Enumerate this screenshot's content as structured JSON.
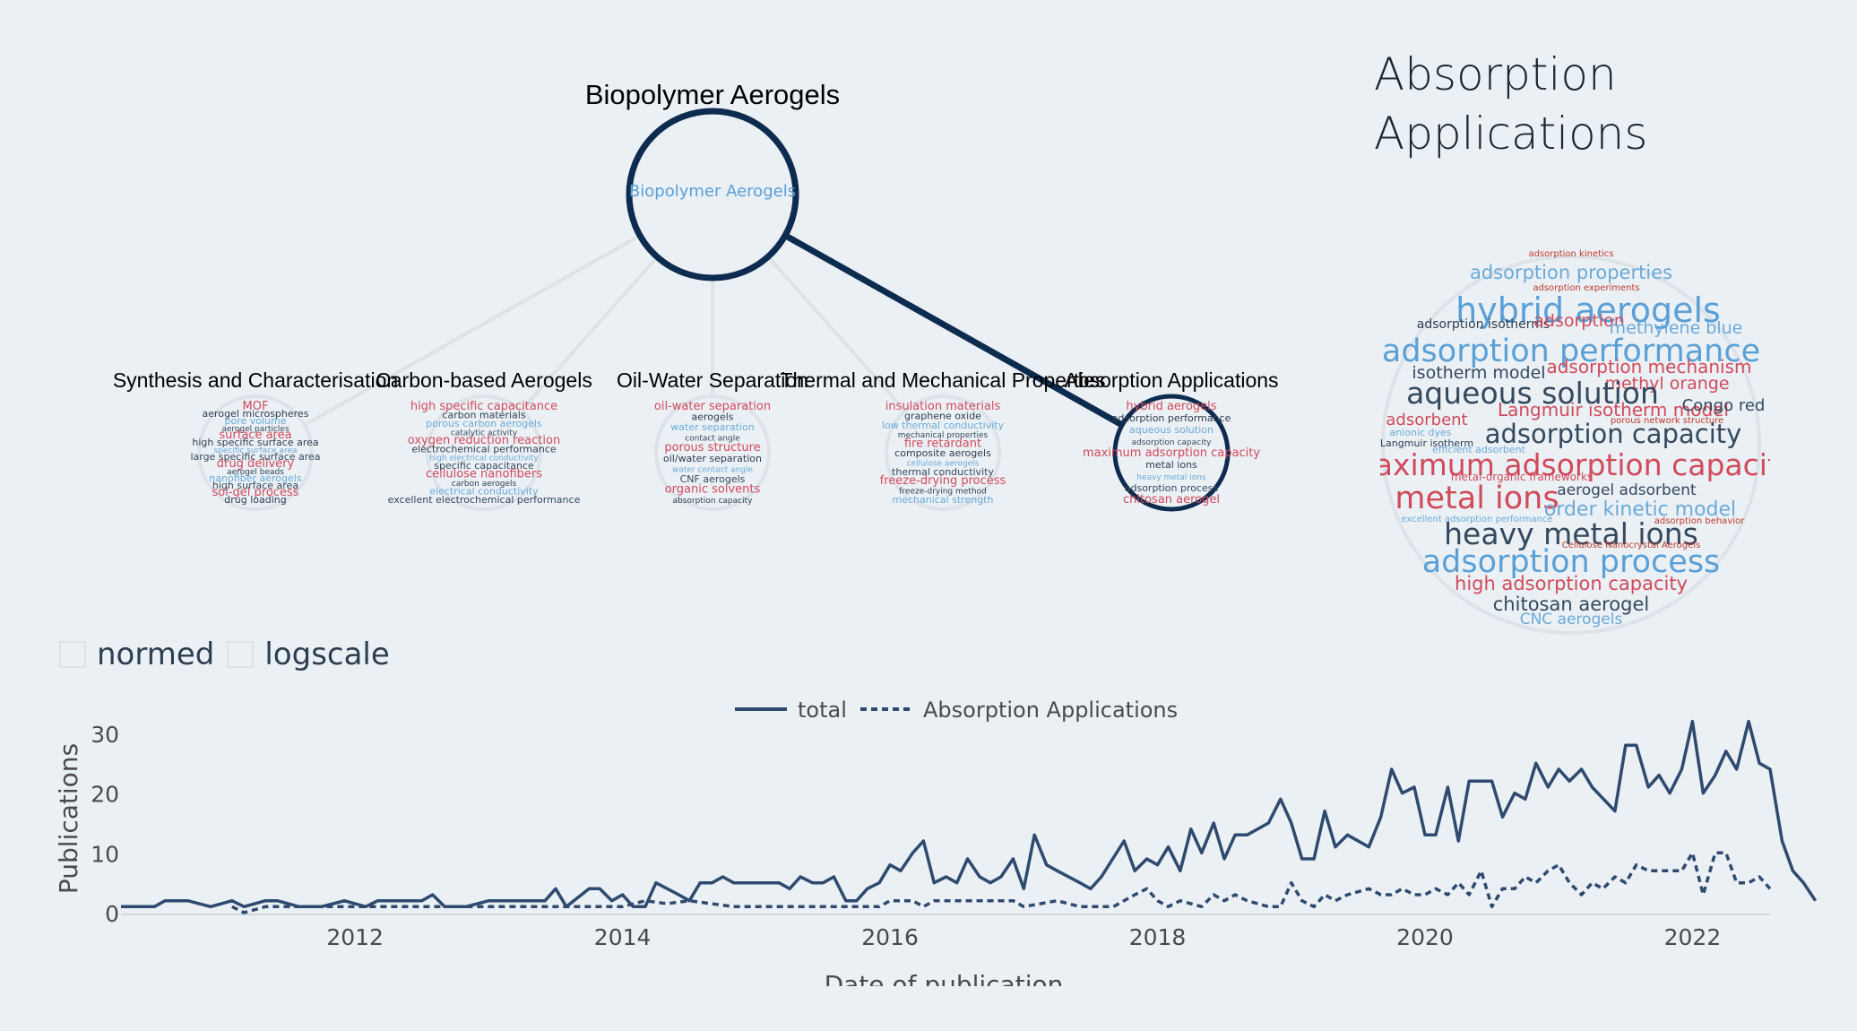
{
  "root": {
    "title": "Biopolymer Aerogels",
    "inner_label": "Biopolymer Aerogels"
  },
  "children": [
    {
      "label": "Synthesis and Characterisation",
      "selected": false,
      "words": [
        "MOF",
        "aerogel microspheres",
        "pore volume",
        "aerogel particles",
        "surface area",
        "high specific surface area",
        "specific surface area",
        "large specific surface area",
        "drug delivery",
        "aerogel beads",
        "nanofiber aerogels",
        "high surface area",
        "sol-gel process",
        "drug loading"
      ]
    },
    {
      "label": "Carbon-based Aerogels",
      "selected": false,
      "words": [
        "high specific capacitance",
        "carbon materials",
        "porous carbon aerogels",
        "catalytic activity",
        "oxygen reduction reaction",
        "electrochemical performance",
        "high electrical conductivity",
        "specific capacitance",
        "cellulose nanofibers",
        "carbon aerogels",
        "electrical conductivity",
        "excellent electrochemical performance"
      ]
    },
    {
      "label": "Oil-Water Separation",
      "selected": false,
      "words": [
        "oil-water separation",
        "aerogels",
        "water separation",
        "contact angle",
        "porous structure",
        "oil/water separation",
        "water contact angle",
        "CNF aerogels",
        "organic solvents",
        "absorption capacity"
      ]
    },
    {
      "label": "Thermal and Mechanical Properties",
      "selected": false,
      "words": [
        "insulation materials",
        "graphene oxide",
        "low thermal conductivity",
        "mechanical properties",
        "fire retardant",
        "composite aerogels",
        "cellulose aerogels",
        "thermal conductivity",
        "freeze-drying process",
        "freeze-drying method",
        "mechanical strength"
      ]
    },
    {
      "label": "Absorption Applications",
      "selected": true,
      "words": [
        "hybrid aerogels",
        "adsorption performance",
        "aqueous solution",
        "adsorption capacity",
        "maximum adsorption capacity",
        "metal ions",
        "heavy metal ions",
        "adsorption process",
        "chitosan aerogel"
      ]
    }
  ],
  "detail": {
    "title": "Absorption Applications",
    "words": [
      {
        "text": "adsorption kinetics",
        "size": 10,
        "color": "#c0392b"
      },
      {
        "text": "adsorption properties",
        "size": 21,
        "color": "#6aaad8"
      },
      {
        "text": "adsorption experiments",
        "size": 10,
        "color": "#c0392b"
      },
      {
        "text": "hybrid aerogels",
        "size": 38,
        "color": "#5aa0d6"
      },
      {
        "text": "adsorption isotherms",
        "size": 14,
        "color": "#2c3e50"
      },
      {
        "text": "adsorption",
        "size": 19,
        "color": "#d14a5a"
      },
      {
        "text": "methylene blue",
        "size": 19,
        "color": "#6aaad8"
      },
      {
        "text": "adsorption performance",
        "size": 35,
        "color": "#5aa0d6"
      },
      {
        "text": "isotherm model",
        "size": 19,
        "color": "#34495e"
      },
      {
        "text": "adsorption mechanism",
        "size": 20,
        "color": "#d14a5a"
      },
      {
        "text": "methyl orange",
        "size": 19,
        "color": "#d14a5a"
      },
      {
        "text": "aqueous solution",
        "size": 33,
        "color": "#34495e"
      },
      {
        "text": "Langmuir isotherm model",
        "size": 20,
        "color": "#d14a5a"
      },
      {
        "text": "Congo red",
        "size": 18,
        "color": "#34495e"
      },
      {
        "text": "adsorbent",
        "size": 18,
        "color": "#d14a5a"
      },
      {
        "text": "porous network structure",
        "size": 10,
        "color": "#c0392b"
      },
      {
        "text": "adsorption capacity",
        "size": 29,
        "color": "#34495e"
      },
      {
        "text": "anionic dyes",
        "size": 11,
        "color": "#6aaad8"
      },
      {
        "text": "Langmuir isotherm",
        "size": 11,
        "color": "#2c3e50"
      },
      {
        "text": "efficient adsorbent",
        "size": 11,
        "color": "#6aaad8"
      },
      {
        "text": "maximum adsorption capacity",
        "size": 33,
        "color": "#d14a5a"
      },
      {
        "text": "metal-organic frameworks",
        "size": 12,
        "color": "#d14a5a"
      },
      {
        "text": "metal ions",
        "size": 35,
        "color": "#d14a5a"
      },
      {
        "text": "aerogel adsorbent",
        "size": 17,
        "color": "#34495e"
      },
      {
        "text": "order kinetic model",
        "size": 22,
        "color": "#6aaad8"
      },
      {
        "text": "excellent adsorption performance",
        "size": 10,
        "color": "#6aaad8"
      },
      {
        "text": "adsorption behavior",
        "size": 10,
        "color": "#c0392b"
      },
      {
        "text": "heavy metal ions",
        "size": 33,
        "color": "#34495e"
      },
      {
        "text": "Cellulose Nanocrystal Aerogels",
        "size": 10,
        "color": "#c0392b"
      },
      {
        "text": "adsorption process",
        "size": 35,
        "color": "#5aa0d6"
      },
      {
        "text": "high adsorption capacity",
        "size": 21,
        "color": "#d14a5a"
      },
      {
        "text": "chitosan aerogel",
        "size": 21,
        "color": "#34495e"
      },
      {
        "text": "CNC aerogels",
        "size": 17,
        "color": "#6aaad8"
      }
    ]
  },
  "controls": {
    "normed_label": "normed",
    "logscale_label": "logscale"
  },
  "chart_data": {
    "type": "line",
    "xlabel": "Date of publication",
    "ylabel": "Publications",
    "ylim": [
      0,
      33
    ],
    "xlim": [
      2010.25,
      2022.58
    ],
    "x_ticks": [
      "2012",
      "2014",
      "2016",
      "2018",
      "2020",
      "2022"
    ],
    "y_ticks": [
      "0",
      "10",
      "20",
      "30"
    ],
    "legend_position": "top-center",
    "series": [
      {
        "name": "total",
        "style": "solid",
        "color": "#2e4a6e",
        "points": [
          [
            2010.25,
            1
          ],
          [
            2010.5,
            1
          ],
          [
            2010.58,
            2
          ],
          [
            2010.75,
            2
          ],
          [
            2010.92,
            1
          ],
          [
            2011.08,
            2
          ],
          [
            2011.17,
            1
          ],
          [
            2011.33,
            2
          ],
          [
            2011.42,
            2
          ],
          [
            2011.58,
            1
          ],
          [
            2011.75,
            1
          ],
          [
            2011.92,
            2
          ],
          [
            2012.08,
            1
          ],
          [
            2012.17,
            2
          ],
          [
            2012.42,
            2
          ],
          [
            2012.5,
            2
          ],
          [
            2012.58,
            3
          ],
          [
            2012.67,
            1
          ],
          [
            2012.83,
            1
          ],
          [
            2013.0,
            2
          ],
          [
            2013.17,
            2
          ],
          [
            2013.25,
            2
          ],
          [
            2013.42,
            2
          ],
          [
            2013.5,
            4
          ],
          [
            2013.58,
            1
          ],
          [
            2013.75,
            4
          ],
          [
            2013.83,
            4
          ],
          [
            2013.92,
            2
          ],
          [
            2014.0,
            3
          ],
          [
            2014.08,
            1
          ],
          [
            2014.17,
            1
          ],
          [
            2014.25,
            5
          ],
          [
            2014.42,
            3
          ],
          [
            2014.5,
            2
          ],
          [
            2014.58,
            5
          ],
          [
            2014.67,
            5
          ],
          [
            2014.75,
            6
          ],
          [
            2014.83,
            5
          ],
          [
            2014.92,
            5
          ],
          [
            2015.08,
            5
          ],
          [
            2015.17,
            5
          ],
          [
            2015.25,
            4
          ],
          [
            2015.33,
            6
          ],
          [
            2015.42,
            5
          ],
          [
            2015.5,
            5
          ],
          [
            2015.58,
            6
          ],
          [
            2015.67,
            2
          ],
          [
            2015.75,
            2
          ],
          [
            2015.83,
            4
          ],
          [
            2015.92,
            5
          ],
          [
            2016.0,
            8
          ],
          [
            2016.08,
            7
          ],
          [
            2016.17,
            10
          ],
          [
            2016.25,
            12
          ],
          [
            2016.33,
            5
          ],
          [
            2016.42,
            6
          ],
          [
            2016.5,
            5
          ],
          [
            2016.58,
            9
          ],
          [
            2016.67,
            6
          ],
          [
            2016.75,
            5
          ],
          [
            2016.83,
            6
          ],
          [
            2016.92,
            9
          ],
          [
            2017.0,
            4
          ],
          [
            2017.08,
            13
          ],
          [
            2017.17,
            8
          ],
          [
            2017.25,
            7
          ],
          [
            2017.42,
            5
          ],
          [
            2017.5,
            4
          ],
          [
            2017.58,
            6
          ],
          [
            2017.75,
            12
          ],
          [
            2017.83,
            7
          ],
          [
            2017.92,
            9
          ],
          [
            2018.0,
            8
          ],
          [
            2018.08,
            11
          ],
          [
            2018.17,
            7
          ],
          [
            2018.25,
            14
          ],
          [
            2018.33,
            10
          ],
          [
            2018.42,
            15
          ],
          [
            2018.5,
            9
          ],
          [
            2018.58,
            13
          ],
          [
            2018.67,
            13
          ],
          [
            2018.83,
            15
          ],
          [
            2018.92,
            19
          ],
          [
            2019.0,
            15
          ],
          [
            2019.08,
            9
          ],
          [
            2019.17,
            9
          ],
          [
            2019.25,
            17
          ],
          [
            2019.33,
            11
          ],
          [
            2019.42,
            13
          ],
          [
            2019.58,
            11
          ],
          [
            2019.67,
            16
          ],
          [
            2019.75,
            24
          ],
          [
            2019.83,
            20
          ],
          [
            2019.92,
            21
          ],
          [
            2020.0,
            13
          ],
          [
            2020.08,
            13
          ],
          [
            2020.17,
            21
          ],
          [
            2020.25,
            12
          ],
          [
            2020.33,
            22
          ],
          [
            2020.5,
            22
          ],
          [
            2020.58,
            16
          ],
          [
            2020.67,
            20
          ],
          [
            2020.75,
            19
          ],
          [
            2020.83,
            25
          ],
          [
            2020.92,
            21
          ],
          [
            2021.0,
            24
          ],
          [
            2021.08,
            22
          ],
          [
            2021.17,
            24
          ],
          [
            2021.25,
            21
          ],
          [
            2021.42,
            17
          ],
          [
            2021.5,
            28
          ],
          [
            2021.58,
            28
          ],
          [
            2021.67,
            21
          ],
          [
            2021.75,
            23
          ],
          [
            2021.83,
            20
          ],
          [
            2021.92,
            24
          ],
          [
            2022.0,
            32
          ],
          [
            2022.08,
            20
          ],
          [
            2022.17,
            23
          ],
          [
            2022.25,
            27
          ],
          [
            2022.33,
            24
          ],
          [
            2022.42,
            32
          ],
          [
            2022.5,
            25
          ],
          [
            2022.58,
            24
          ],
          [
            2022.67,
            12
          ],
          [
            2022.75,
            7
          ],
          [
            2022.83,
            5
          ],
          [
            2022.92,
            2
          ]
        ]
      },
      {
        "name": "Absorption Applications",
        "style": "dotted",
        "color": "#2e4a6e",
        "points": [
          [
            2011.08,
            1
          ],
          [
            2011.17,
            0
          ],
          [
            2011.33,
            1
          ],
          [
            2012.08,
            1
          ],
          [
            2012.5,
            1
          ],
          [
            2013.0,
            1
          ],
          [
            2013.58,
            1
          ],
          [
            2014.0,
            1
          ],
          [
            2014.17,
            2
          ],
          [
            2014.33,
            1.5
          ],
          [
            2014.5,
            2
          ],
          [
            2014.83,
            1
          ],
          [
            2015.5,
            1
          ],
          [
            2015.92,
            1
          ],
          [
            2016.0,
            2
          ],
          [
            2016.17,
            2
          ],
          [
            2016.25,
            1
          ],
          [
            2016.33,
            2
          ],
          [
            2016.75,
            2
          ],
          [
            2016.92,
            2
          ],
          [
            2017.0,
            1
          ],
          [
            2017.25,
            2
          ],
          [
            2017.42,
            1
          ],
          [
            2017.67,
            1
          ],
          [
            2017.83,
            3
          ],
          [
            2017.92,
            4
          ],
          [
            2018.0,
            2
          ],
          [
            2018.08,
            1
          ],
          [
            2018.17,
            2
          ],
          [
            2018.33,
            1
          ],
          [
            2018.42,
            3
          ],
          [
            2018.5,
            2
          ],
          [
            2018.58,
            3
          ],
          [
            2018.67,
            2
          ],
          [
            2018.83,
            1
          ],
          [
            2018.92,
            1
          ],
          [
            2019.0,
            5
          ],
          [
            2019.08,
            2
          ],
          [
            2019.17,
            1
          ],
          [
            2019.25,
            3
          ],
          [
            2019.33,
            2
          ],
          [
            2019.42,
            3
          ],
          [
            2019.58,
            4
          ],
          [
            2019.67,
            3
          ],
          [
            2019.75,
            3
          ],
          [
            2019.83,
            4
          ],
          [
            2019.92,
            3
          ],
          [
            2020.0,
            3
          ],
          [
            2020.08,
            4
          ],
          [
            2020.17,
            3
          ],
          [
            2020.25,
            5
          ],
          [
            2020.33,
            3
          ],
          [
            2020.42,
            7
          ],
          [
            2020.5,
            1
          ],
          [
            2020.58,
            4
          ],
          [
            2020.67,
            4
          ],
          [
            2020.75,
            6
          ],
          [
            2020.83,
            5
          ],
          [
            2020.92,
            7
          ],
          [
            2021.0,
            8
          ],
          [
            2021.08,
            5
          ],
          [
            2021.17,
            3
          ],
          [
            2021.25,
            5
          ],
          [
            2021.33,
            4
          ],
          [
            2021.42,
            6
          ],
          [
            2021.5,
            5
          ],
          [
            2021.58,
            8
          ],
          [
            2021.67,
            7
          ],
          [
            2021.75,
            7
          ],
          [
            2021.83,
            7
          ],
          [
            2021.92,
            7
          ],
          [
            2022.0,
            10
          ],
          [
            2022.08,
            3
          ],
          [
            2022.17,
            10
          ],
          [
            2022.25,
            10
          ],
          [
            2022.33,
            5
          ],
          [
            2022.42,
            5
          ],
          [
            2022.5,
            6
          ],
          [
            2022.58,
            4
          ]
        ]
      }
    ]
  }
}
